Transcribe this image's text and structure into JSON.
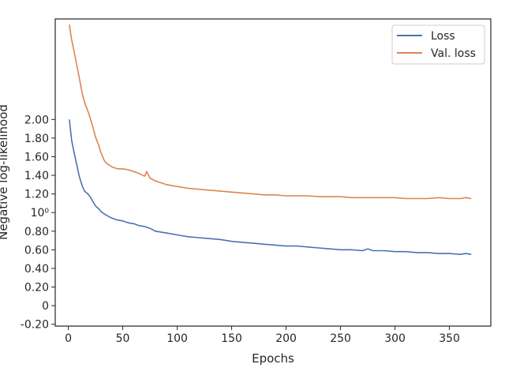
{
  "chart_data": {
    "type": "line",
    "xlabel": "Epochs",
    "ylabel": "Negative log-likelihood",
    "xlim": [
      -12,
      388
    ],
    "ylim": [
      -0.22,
      3.08
    ],
    "x_ticks": [
      0,
      50,
      100,
      150,
      200,
      250,
      300,
      350
    ],
    "x_tick_labels": [
      "0",
      "50",
      "100",
      "150",
      "200",
      "250",
      "300",
      "350"
    ],
    "y_ticks": [
      -0.2,
      0,
      0.2,
      0.4,
      0.6,
      0.8,
      1.0,
      1.2,
      1.4,
      1.6,
      1.8,
      2.0
    ],
    "y_tick_labels": [
      "-0.20",
      "0",
      "0.20",
      "0.40",
      "0.60",
      "0.80",
      "10⁰",
      "1.20",
      "1.40",
      "1.60",
      "1.80",
      "2.00"
    ],
    "grid": false,
    "legend": {
      "position": "top-right",
      "entries": [
        "Loss",
        "Val. loss"
      ]
    },
    "series": [
      {
        "name": "Loss",
        "color": "#4c72b0",
        "x": [
          1,
          3,
          5,
          8,
          10,
          13,
          15,
          18,
          20,
          23,
          25,
          28,
          30,
          35,
          40,
          45,
          50,
          55,
          60,
          65,
          70,
          75,
          80,
          90,
          100,
          110,
          120,
          130,
          140,
          150,
          160,
          170,
          180,
          190,
          200,
          210,
          220,
          230,
          240,
          250,
          260,
          270,
          275,
          280,
          290,
          300,
          310,
          320,
          330,
          340,
          350,
          360,
          365,
          370
        ],
        "y": [
          2.0,
          1.78,
          1.66,
          1.5,
          1.39,
          1.28,
          1.23,
          1.2,
          1.17,
          1.11,
          1.07,
          1.04,
          1.01,
          0.97,
          0.94,
          0.92,
          0.91,
          0.89,
          0.88,
          0.86,
          0.85,
          0.83,
          0.8,
          0.78,
          0.76,
          0.74,
          0.73,
          0.72,
          0.71,
          0.69,
          0.68,
          0.67,
          0.66,
          0.65,
          0.64,
          0.64,
          0.63,
          0.62,
          0.61,
          0.6,
          0.6,
          0.59,
          0.61,
          0.59,
          0.59,
          0.58,
          0.58,
          0.57,
          0.57,
          0.56,
          0.56,
          0.55,
          0.56,
          0.55
        ]
      },
      {
        "name": "Val. loss",
        "color": "#dd8452",
        "x": [
          1,
          3,
          5,
          8,
          10,
          13,
          15,
          18,
          20,
          23,
          25,
          28,
          30,
          33,
          35,
          40,
          45,
          50,
          55,
          60,
          65,
          70,
          72,
          75,
          80,
          90,
          100,
          110,
          120,
          130,
          140,
          150,
          160,
          170,
          180,
          190,
          200,
          210,
          220,
          230,
          240,
          250,
          260,
          270,
          280,
          290,
          300,
          310,
          320,
          330,
          340,
          350,
          360,
          365,
          370
        ],
        "y": [
          3.02,
          2.86,
          2.75,
          2.57,
          2.45,
          2.27,
          2.18,
          2.09,
          2.02,
          1.9,
          1.81,
          1.72,
          1.64,
          1.56,
          1.53,
          1.49,
          1.47,
          1.47,
          1.46,
          1.44,
          1.42,
          1.39,
          1.44,
          1.37,
          1.34,
          1.3,
          1.28,
          1.26,
          1.25,
          1.24,
          1.23,
          1.22,
          1.21,
          1.2,
          1.19,
          1.19,
          1.18,
          1.18,
          1.18,
          1.17,
          1.17,
          1.17,
          1.16,
          1.16,
          1.16,
          1.16,
          1.16,
          1.15,
          1.15,
          1.15,
          1.16,
          1.15,
          1.15,
          1.16,
          1.15
        ]
      }
    ]
  }
}
